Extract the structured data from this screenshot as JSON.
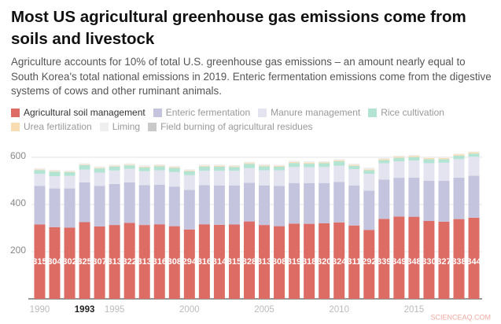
{
  "chart_data": {
    "type": "stacked-bar",
    "title": "Most US agricultural greenhouse gas emissions come from soils and livestock",
    "subtitle": "Agriculture accounts for 10% of total U.S. greenhouse gas emissions – an amount nearly equal to South Korea's total national emissions in 2019. Enteric fermentation emissions come from the digestive systems of cows and other ruminant animals.",
    "x": [
      1990,
      1991,
      1992,
      1993,
      1994,
      1995,
      1996,
      1997,
      1998,
      1999,
      2000,
      2001,
      2002,
      2003,
      2004,
      2005,
      2006,
      2007,
      2008,
      2009,
      2010,
      2011,
      2012,
      2013,
      2014,
      2015,
      2016,
      2017,
      2018,
      2019
    ],
    "xlim": [
      1989.45,
      2019.55
    ],
    "xticks": [
      1990,
      1995,
      2000,
      2005,
      2010,
      2015
    ],
    "highlighted_x": 1993,
    "ylim": [
      0,
      650
    ],
    "yticks": [
      200,
      400,
      600
    ],
    "grid": true,
    "data_labels_series": 0,
    "series": [
      {
        "name": "Agricultural soil management",
        "color": "#dc6c64",
        "values": [
          315,
          304,
          302,
          325,
          307,
          313,
          322,
          313,
          316,
          308,
          294,
          316,
          314,
          315,
          328,
          313,
          308,
          319,
          318,
          320,
          324,
          311,
          292,
          339,
          349,
          348,
          330,
          327,
          338,
          344
        ]
      },
      {
        "name": "Enteric fermentation",
        "color": "#c4c4de",
        "values": [
          164,
          164,
          166,
          169,
          172,
          174,
          172,
          169,
          168,
          168,
          168,
          166,
          166,
          165,
          164,
          168,
          171,
          172,
          172,
          171,
          171,
          169,
          167,
          166,
          164,
          166,
          170,
          173,
          176,
          178
        ]
      },
      {
        "name": "Manure management",
        "color": "#e4e4f1",
        "values": [
          51,
          52,
          53,
          54,
          56,
          57,
          57,
          59,
          61,
          61,
          62,
          61,
          63,
          63,
          62,
          64,
          66,
          68,
          68,
          68,
          69,
          70,
          71,
          70,
          70,
          72,
          75,
          77,
          78,
          80
        ]
      },
      {
        "name": "Rice cultivation",
        "color": "#b3e4d3",
        "values": [
          16,
          19,
          16,
          19,
          18,
          17,
          15,
          16,
          17,
          18,
          17,
          18,
          17,
          16,
          18,
          17,
          15,
          17,
          15,
          16,
          19,
          14,
          15,
          13,
          15,
          15,
          17,
          15,
          15,
          14
        ]
      },
      {
        "name": "Urea fertilization",
        "color": "#f8dcb2",
        "values": [
          2.4,
          2.4,
          2.4,
          2.5,
          2.6,
          2.7,
          2.8,
          2.9,
          3,
          3.1,
          3.2,
          3.3,
          3.5,
          3.6,
          3.9,
          3.6,
          3.7,
          3.9,
          4.1,
          3.6,
          3.8,
          4.1,
          4.2,
          4.5,
          4.7,
          4.8,
          5,
          5.2,
          5.3,
          5.3
        ]
      },
      {
        "name": "Liming",
        "color": "#efefef",
        "values": [
          4.7,
          5,
          4.4,
          4.7,
          4.4,
          4.2,
          4.4,
          5,
          4.6,
          4.2,
          4.3,
          4.1,
          4.8,
          3.8,
          4.3,
          4.3,
          4.2,
          4.5,
          5,
          3.7,
          4.8,
          3.9,
          5.8,
          3.9,
          3.6,
          3.7,
          3.1,
          3.1,
          2.2,
          2.4
        ]
      },
      {
        "name": "Field burning of agricultural residues",
        "color": "#c9c9c9",
        "values": [
          0.4,
          0.4,
          0.4,
          0.4,
          0.4,
          0.4,
          0.4,
          0.4,
          0.4,
          0.4,
          0.4,
          0.4,
          0.4,
          0.4,
          0.4,
          0.4,
          0.4,
          0.4,
          0.4,
          0.4,
          0.4,
          0.4,
          0.4,
          0.4,
          0.4,
          0.4,
          0.4,
          0.4,
          0.4,
          0.4
        ]
      }
    ],
    "watermark": "SCIENCEAQ.COM"
  }
}
